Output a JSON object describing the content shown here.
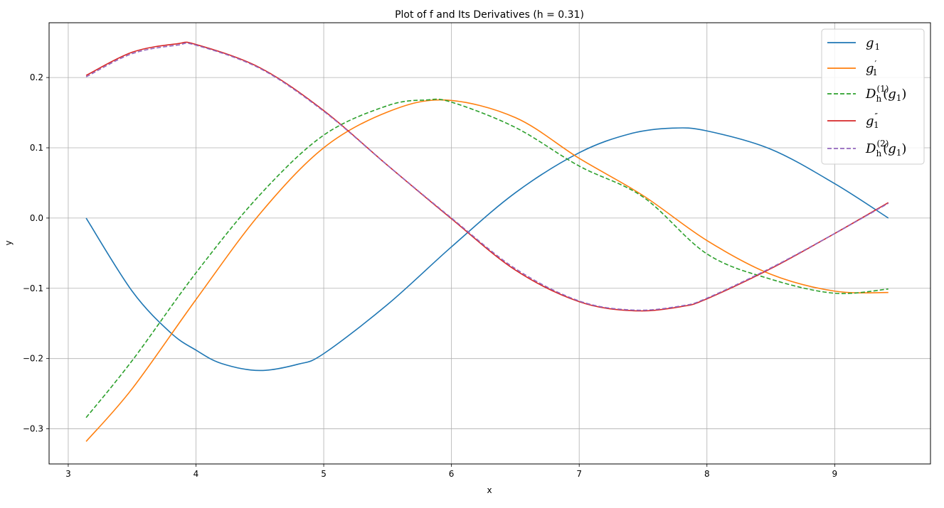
{
  "chart_data": {
    "type": "line",
    "title": "Plot of f and Its Derivatives (h = 0.31)",
    "xlabel": "x",
    "ylabel": "y",
    "xlim": [
      2.85,
      9.75
    ],
    "ylim": [
      -0.35,
      0.278
    ],
    "xticks": [
      3,
      4,
      5,
      6,
      7,
      8,
      9
    ],
    "xtick_labels": [
      "3",
      "4",
      "5",
      "6",
      "7",
      "8",
      "9"
    ],
    "yticks": [
      -0.3,
      -0.2,
      -0.1,
      0.0,
      0.1,
      0.2
    ],
    "ytick_labels": [
      "−0.3",
      "−0.2",
      "−0.1",
      "0.0",
      "0.1",
      "0.2"
    ],
    "grid": true,
    "legend_position": "top-right",
    "series": [
      {
        "key": "g1",
        "legend": {
          "base": "g",
          "sub": "1",
          "sup": "",
          "suffix": ""
        },
        "color": "#1f77b4",
        "dash": "solid",
        "x": [
          3.14,
          3.5,
          3.8,
          4.0,
          4.2,
          4.5,
          4.8,
          5.0,
          5.5,
          6.0,
          6.5,
          7.0,
          7.4,
          7.73,
          8.0,
          8.5,
          9.0,
          9.42
        ],
        "y": [
          0.0,
          -0.104,
          -0.163,
          -0.188,
          -0.207,
          -0.217,
          -0.208,
          -0.193,
          -0.123,
          -0.041,
          0.036,
          0.093,
          0.12,
          0.128,
          0.124,
          0.098,
          0.049,
          0.0
        ]
      },
      {
        "key": "g1_prime",
        "legend": {
          "base": "g",
          "sub": "1",
          "sup": "′",
          "suffix": ""
        },
        "color": "#ff7f0e",
        "dash": "solid",
        "x": [
          3.14,
          3.5,
          4.0,
          4.5,
          5.0,
          5.5,
          5.95,
          6.5,
          7.0,
          7.5,
          8.0,
          8.5,
          9.0,
          9.42
        ],
        "y": [
          -0.318,
          -0.243,
          -0.116,
          0.006,
          0.1,
          0.151,
          0.168,
          0.143,
          0.085,
          0.032,
          -0.032,
          -0.08,
          -0.104,
          -0.106
        ]
      },
      {
        "key": "Dh1_g1",
        "legend": {
          "base": "D",
          "sub": "h",
          "sup": "(1)",
          "suffix": "(g1)"
        },
        "color": "#2ca02c",
        "dash": "dashed",
        "x": [
          3.14,
          3.5,
          4.0,
          4.5,
          5.0,
          5.5,
          5.8,
          6.0,
          6.5,
          7.0,
          7.5,
          8.0,
          8.5,
          9.0,
          9.42
        ],
        "y": [
          -0.284,
          -0.203,
          -0.078,
          0.033,
          0.118,
          0.16,
          0.168,
          0.165,
          0.129,
          0.074,
          0.03,
          -0.051,
          -0.087,
          -0.107,
          -0.101
        ]
      },
      {
        "key": "g1_double_prime",
        "legend": {
          "base": "g",
          "sub": "1",
          "sup": "″",
          "suffix": ""
        },
        "color": "#d62728",
        "dash": "solid",
        "x": [
          3.14,
          3.5,
          3.85,
          4.0,
          4.5,
          5.0,
          5.5,
          6.0,
          6.5,
          7.0,
          7.43,
          7.8,
          8.0,
          8.5,
          9.0,
          9.42
        ],
        "y": [
          0.203,
          0.236,
          0.248,
          0.247,
          0.214,
          0.153,
          0.075,
          -0.001,
          -0.074,
          -0.119,
          -0.132,
          -0.126,
          -0.115,
          -0.072,
          -0.022,
          0.022
        ]
      },
      {
        "key": "Dh2_g1",
        "legend": {
          "base": "D",
          "sub": "h",
          "sup": "(2)",
          "suffix": "(g1)"
        },
        "color": "#9467bd",
        "dash": "dashed",
        "x": [
          3.14,
          3.5,
          3.85,
          4.0,
          4.5,
          5.0,
          5.5,
          6.0,
          6.5,
          7.0,
          7.43,
          7.8,
          8.0,
          8.5,
          9.0,
          9.42
        ],
        "y": [
          0.201,
          0.234,
          0.246,
          0.246,
          0.213,
          0.152,
          0.075,
          0.0,
          -0.072,
          -0.118,
          -0.131,
          -0.125,
          -0.114,
          -0.071,
          -0.022,
          0.021
        ]
      }
    ]
  }
}
